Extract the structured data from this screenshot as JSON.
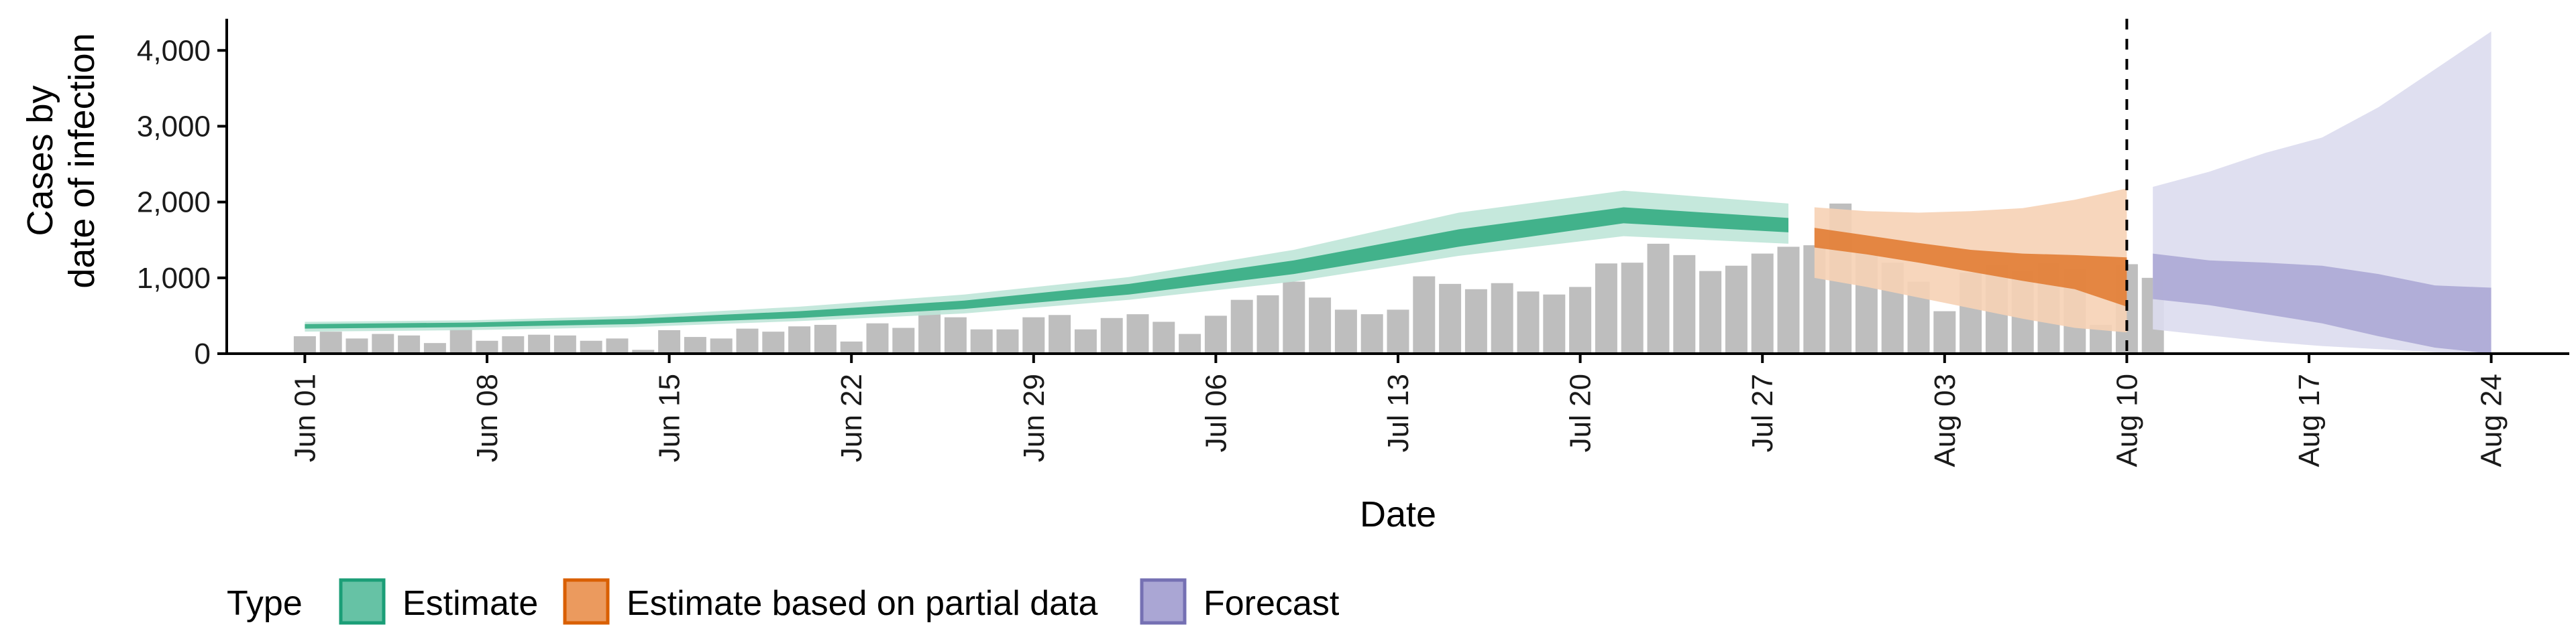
{
  "chart_data": {
    "type": "bar+ribbon",
    "title": "",
    "xlabel": "Date",
    "ylabel_lines": [
      "Cases by",
      "date of infection"
    ],
    "ylim": [
      0,
      4400
    ],
    "yticks": [
      0,
      1000,
      2000,
      3000,
      4000
    ],
    "ytick_labels": [
      "0",
      "1,000",
      "2,000",
      "3,000",
      "4,000"
    ],
    "x_start": "2020-05-29",
    "x_end": "2020-08-27",
    "xticks": [
      "2020-06-01",
      "2020-06-08",
      "2020-06-15",
      "2020-06-22",
      "2020-06-29",
      "2020-07-06",
      "2020-07-13",
      "2020-07-20",
      "2020-07-27",
      "2020-08-03",
      "2020-08-10",
      "2020-08-17",
      "2020-08-24"
    ],
    "xtick_labels": [
      "Jun 01",
      "Jun 08",
      "Jun 15",
      "Jun 22",
      "Jun 29",
      "Jul 06",
      "Jul 13",
      "Jul 20",
      "Jul 27",
      "Aug 03",
      "Aug 10",
      "Aug 17",
      "Aug 24"
    ],
    "vline_date": "2020-08-10",
    "grid": false,
    "legend": {
      "position": "bottom",
      "title": "Type",
      "items": [
        {
          "label": "Estimate",
          "fill": "#66c2a5",
          "stroke": "#1b9e77"
        },
        {
          "label": "Estimate based on partial data",
          "fill": "#eb9a5e",
          "stroke": "#d95f02"
        },
        {
          "label": "Forecast",
          "fill": "#aaa6d4",
          "stroke": "#7570b3"
        }
      ]
    },
    "colors": {
      "bars": "#bebebe",
      "axis": "#000000",
      "estimate_inner": "#2aa87c",
      "estimate_outer": "#bfe6d8",
      "partial_inner": "#e0782d",
      "partial_outer": "#f6d2b5",
      "forecast_inner": "#a9a6d4",
      "forecast_outer": "#dcdbee"
    },
    "bars": {
      "start": "2020-06-01",
      "values": [
        230,
        290,
        200,
        260,
        240,
        140,
        330,
        170,
        230,
        250,
        240,
        170,
        200,
        50,
        310,
        220,
        200,
        330,
        290,
        360,
        380,
        160,
        400,
        340,
        580,
        480,
        320,
        320,
        480,
        510,
        320,
        470,
        520,
        420,
        260,
        500,
        710,
        770,
        950,
        740,
        580,
        520,
        580,
        1020,
        920,
        850,
        930,
        820,
        780,
        880,
        1190,
        1200,
        1450,
        1300,
        1090,
        1160,
        1320,
        1410,
        1430,
        1980,
        1340,
        1200,
        950,
        560,
        1070,
        1180,
        1100,
        1200,
        1120,
        380,
        1180,
        1000
      ]
    },
    "series": [
      {
        "name": "Estimate",
        "x_start": "2020-06-01",
        "x_end": "2020-07-28",
        "step_days": 7,
        "inner_lower": [
          330,
          350,
          390,
          470,
          590,
          780,
          1050,
          1410,
          1720,
          1600
        ],
        "inner_upper": [
          390,
          410,
          460,
          560,
          700,
          920,
          1230,
          1640,
          1930,
          1790
        ],
        "outer_lower": [
          290,
          310,
          350,
          430,
          530,
          710,
          950,
          1290,
          1550,
          1450
        ],
        "outer_upper": [
          420,
          440,
          500,
          620,
          780,
          1010,
          1370,
          1860,
          2150,
          1980
        ]
      },
      {
        "name": "Estimate based on partial data",
        "x_start": "2020-07-29",
        "x_end": "2020-08-10",
        "step_days": 2,
        "inner_lower": [
          1400,
          1310,
          1200,
          1080,
          960,
          850,
          620
        ],
        "inner_upper": [
          1660,
          1560,
          1460,
          1370,
          1320,
          1300,
          1270
        ],
        "outer_lower": [
          1000,
          880,
          740,
          600,
          460,
          340,
          280
        ],
        "outer_upper": [
          1930,
          1880,
          1860,
          1880,
          1920,
          2030,
          2180
        ]
      },
      {
        "name": "Forecast",
        "x_start": "2020-08-11",
        "x_end": "2020-08-24",
        "step_days": 2,
        "inner_lower": [
          720,
          640,
          520,
          400,
          230,
          80,
          0
        ],
        "inner_upper": [
          1320,
          1230,
          1200,
          1160,
          1050,
          900,
          870
        ],
        "outer_lower": [
          320,
          240,
          160,
          100,
          60,
          20,
          0
        ],
        "outer_upper": [
          2200,
          2400,
          2650,
          2850,
          3250,
          3750,
          4250
        ]
      }
    ]
  }
}
